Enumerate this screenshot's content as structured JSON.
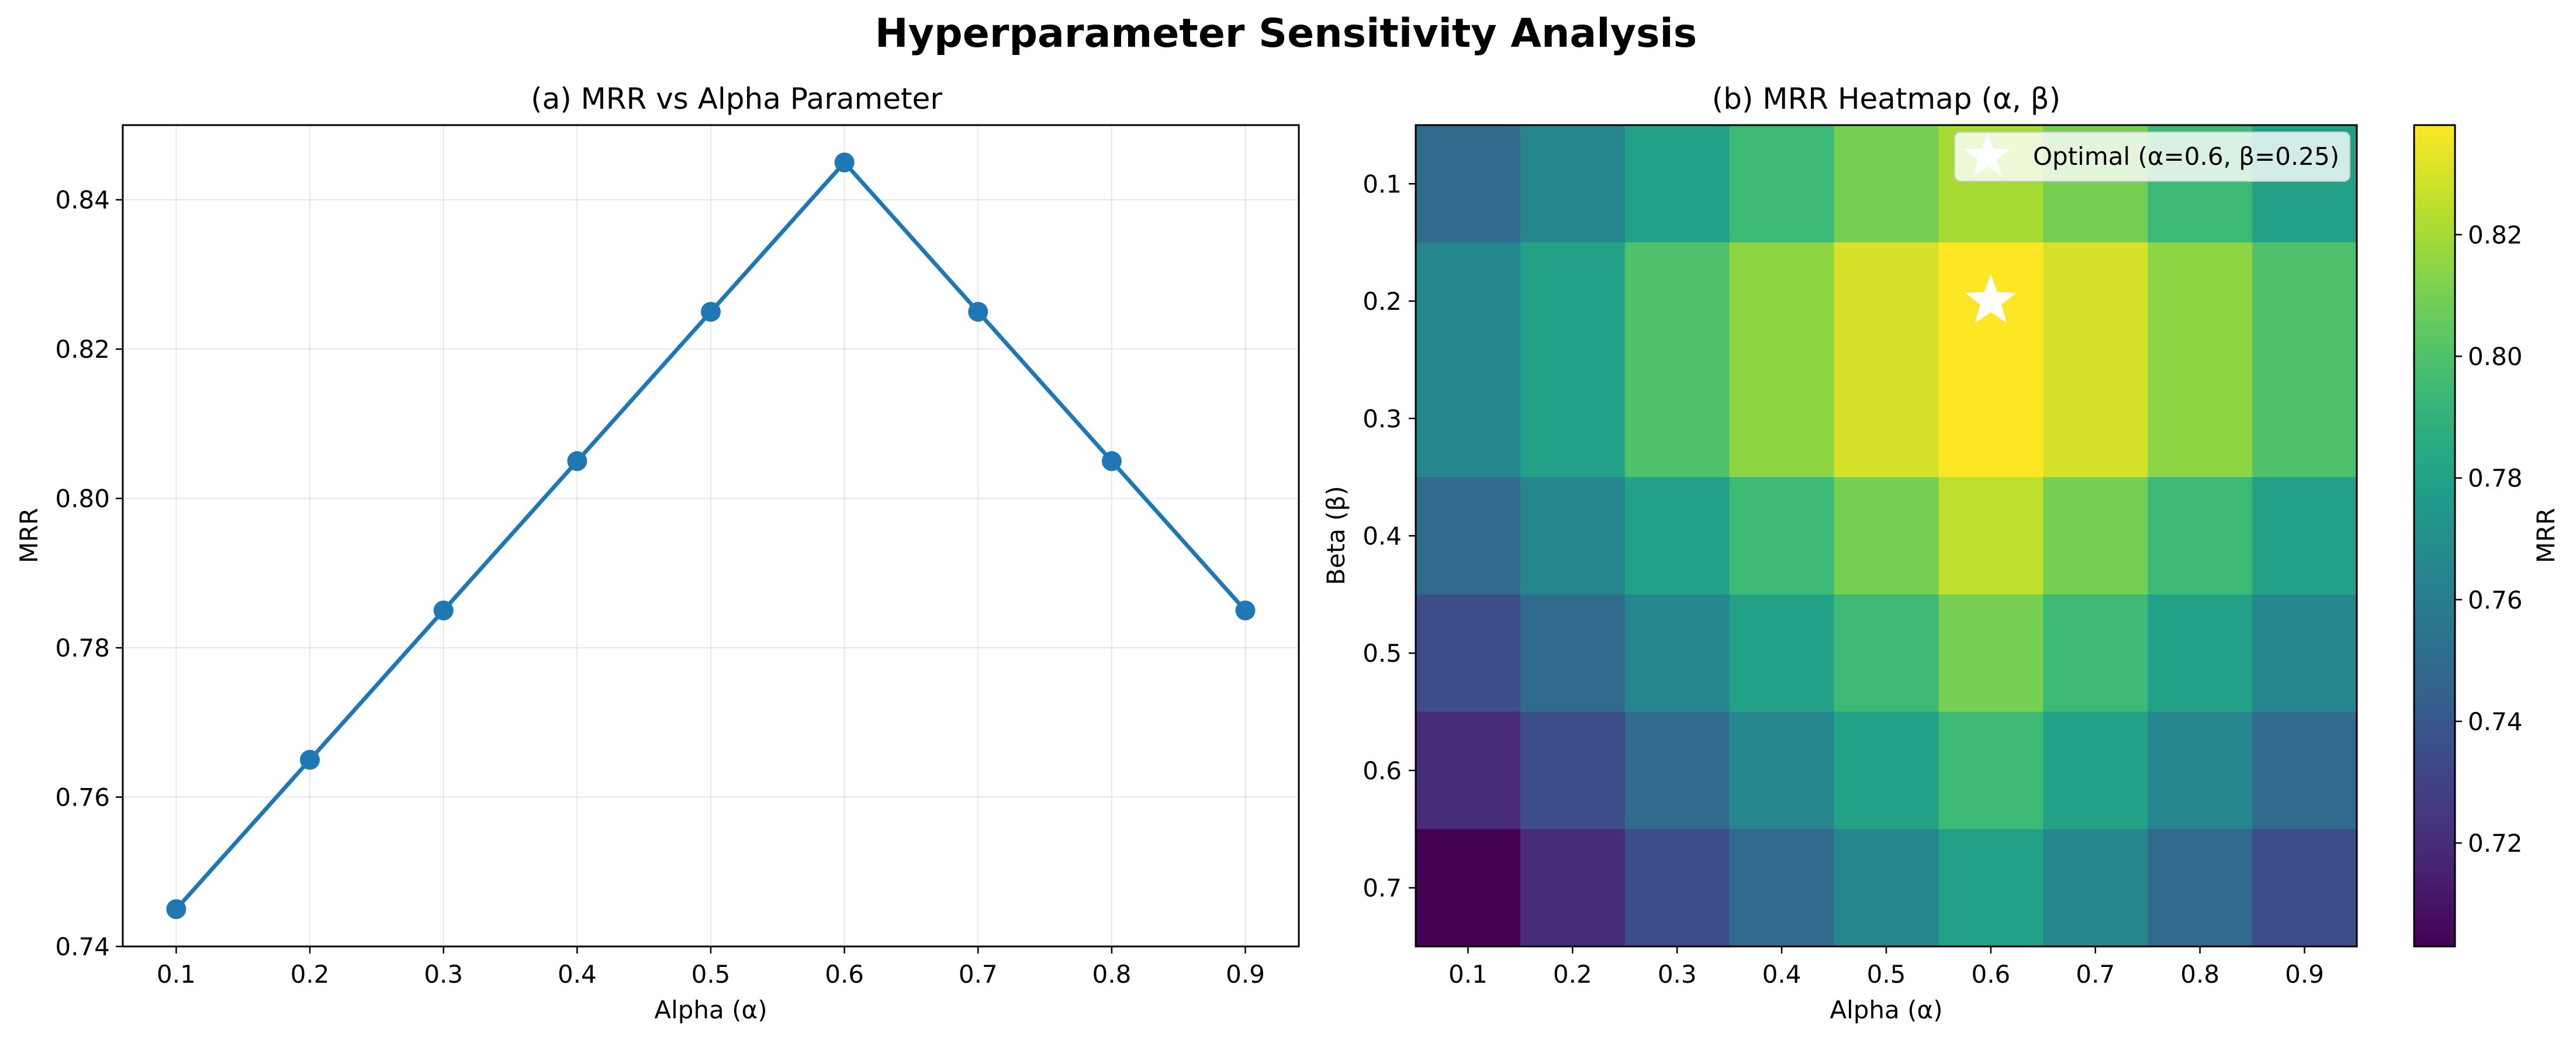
{
  "figure": {
    "title": "Hyperparameter Sensitivity Analysis"
  },
  "chart_data": [
    {
      "type": "line",
      "title": "(a) MRR vs Alpha Parameter",
      "xlabel": "Alpha (α)",
      "ylabel": "MRR",
      "x": [
        0.1,
        0.2,
        0.3,
        0.4,
        0.5,
        0.6,
        0.7,
        0.8,
        0.9
      ],
      "x_tick_labels": [
        "0.1",
        "0.2",
        "0.3",
        "0.4",
        "0.5",
        "0.6",
        "0.7",
        "0.8",
        "0.9"
      ],
      "series": [
        {
          "values": [
            0.745,
            0.765,
            0.785,
            0.805,
            0.825,
            0.845,
            0.825,
            0.805,
            0.785
          ],
          "color": "#1f77b4",
          "marker": "circle"
        }
      ],
      "xlim": [
        0.06,
        0.94
      ],
      "ylim": [
        0.74,
        0.85
      ],
      "y_ticks": [
        0.74,
        0.76,
        0.78,
        0.8,
        0.82,
        0.84
      ],
      "y_tick_labels": [
        "0.74",
        "0.76",
        "0.78",
        "0.80",
        "0.82",
        "0.84"
      ],
      "grid": true
    },
    {
      "type": "heatmap",
      "title": "(b) MRR Heatmap (α, β)",
      "xlabel": "Alpha (α)",
      "ylabel": "Beta (β)",
      "colorbar_label": "MRR",
      "colormap": "viridis",
      "x_categories": [
        "0.1",
        "0.2",
        "0.3",
        "0.4",
        "0.5",
        "0.6",
        "0.7",
        "0.8",
        "0.9"
      ],
      "y_categories": [
        "0.1",
        "0.2",
        "0.3",
        "0.4",
        "0.5",
        "0.6",
        "0.7"
      ],
      "y_cell_edges": [
        0.05,
        0.15,
        0.35,
        0.45,
        0.55,
        0.65,
        0.75
      ],
      "y_range": [
        0.05,
        0.75
      ],
      "values": [
        [
          0.75,
          0.765,
          0.78,
          0.795,
          0.81,
          0.82,
          0.81,
          0.795,
          0.78
        ],
        [
          0.765,
          0.78,
          0.8,
          0.815,
          0.83,
          0.838,
          0.83,
          0.815,
          0.8
        ],
        [
          0.75,
          0.765,
          0.78,
          0.795,
          0.81,
          0.825,
          0.81,
          0.795,
          0.78
        ],
        [
          0.735,
          0.75,
          0.765,
          0.78,
          0.795,
          0.81,
          0.795,
          0.78,
          0.765
        ],
        [
          0.72,
          0.735,
          0.75,
          0.765,
          0.78,
          0.795,
          0.78,
          0.765,
          0.75
        ],
        [
          0.703,
          0.72,
          0.735,
          0.75,
          0.765,
          0.78,
          0.765,
          0.75,
          0.735
        ]
      ],
      "color_range": [
        0.703,
        0.838
      ],
      "colorbar_ticks": [
        0.72,
        0.74,
        0.76,
        0.78,
        0.8,
        0.82
      ],
      "colorbar_tick_labels": [
        "0.72",
        "0.74",
        "0.76",
        "0.78",
        "0.80",
        "0.82"
      ],
      "marker": {
        "shape": "star",
        "x": 0.6,
        "y": 0.2,
        "color": "#ffffff"
      },
      "legend": {
        "entries": [
          "Optimal (α=0.6, β=0.25)"
        ],
        "location": "upper right"
      }
    }
  ]
}
